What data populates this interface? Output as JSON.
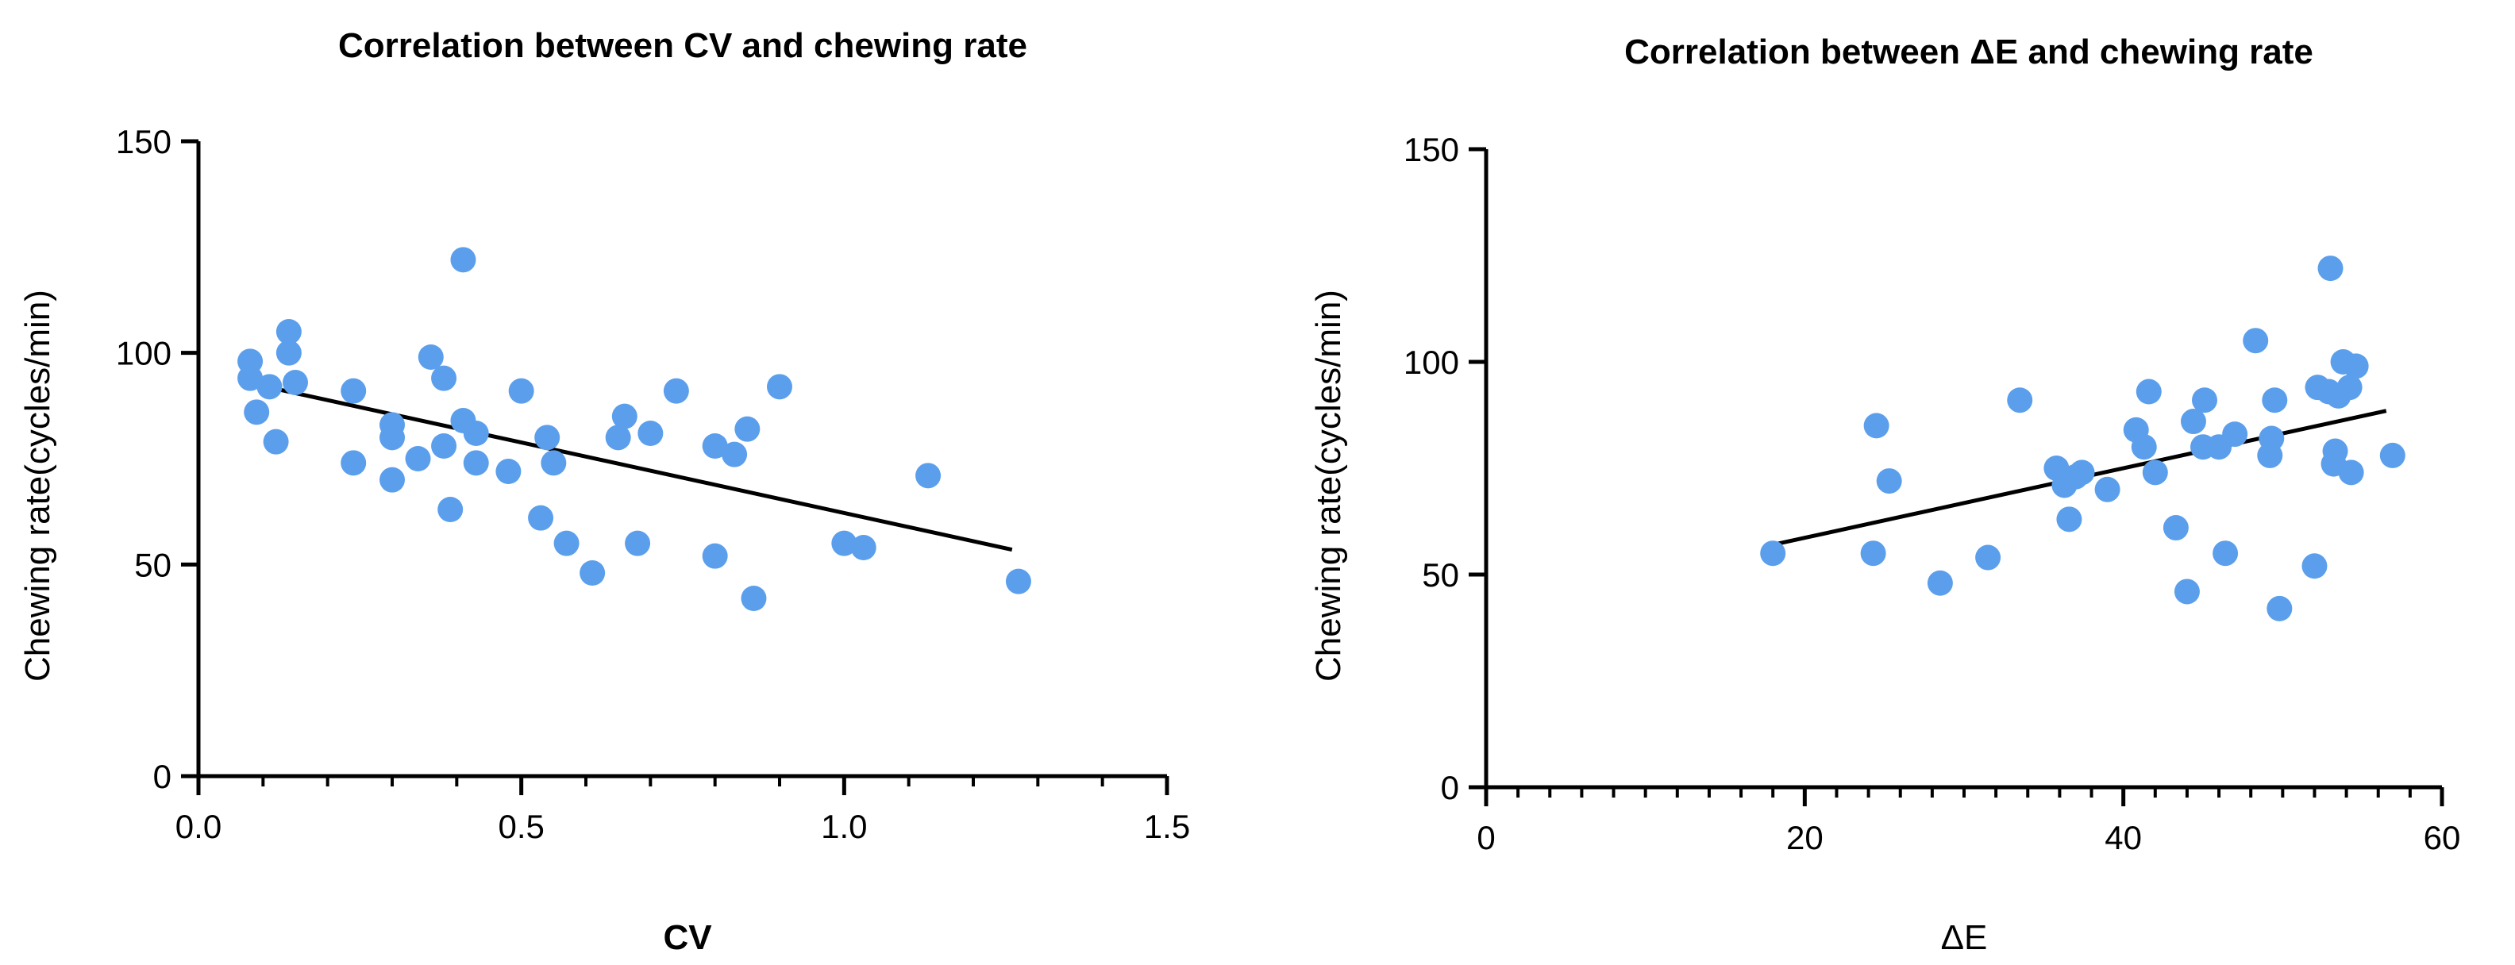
{
  "colors": {
    "point": "#5b9fec",
    "axis": "#000000",
    "fit": "#000000"
  },
  "chart_data": [
    {
      "type": "scatter",
      "title": "Correlation between CV and chewing rate",
      "xlabel": "CV",
      "ylabel": "Chewing rate(cycles/min)",
      "xlim": [
        0,
        1.5
      ],
      "ylim": [
        0,
        150
      ],
      "xticks": [
        0,
        0.5,
        1.0,
        1.5
      ],
      "xtick_labels": [
        "0.0",
        "0.5",
        "1.0",
        "1.5"
      ],
      "yticks": [
        0,
        50,
        100,
        150
      ],
      "ytick_labels": [
        "0",
        "50",
        "100",
        "150"
      ],
      "x_minor_step": 0.1,
      "y_minor_step": 0,
      "fit_line": {
        "x": [
          0.12,
          1.26
        ],
        "y": [
          91.5,
          53.5
        ]
      },
      "points": [
        {
          "x": 0.08,
          "y": 98
        },
        {
          "x": 0.08,
          "y": 94
        },
        {
          "x": 0.09,
          "y": 86
        },
        {
          "x": 0.11,
          "y": 92
        },
        {
          "x": 0.12,
          "y": 79
        },
        {
          "x": 0.14,
          "y": 105
        },
        {
          "x": 0.14,
          "y": 100
        },
        {
          "x": 0.15,
          "y": 93
        },
        {
          "x": 0.24,
          "y": 91
        },
        {
          "x": 0.24,
          "y": 74
        },
        {
          "x": 0.3,
          "y": 83
        },
        {
          "x": 0.3,
          "y": 80
        },
        {
          "x": 0.3,
          "y": 70
        },
        {
          "x": 0.34,
          "y": 75
        },
        {
          "x": 0.36,
          "y": 99
        },
        {
          "x": 0.38,
          "y": 94
        },
        {
          "x": 0.38,
          "y": 78
        },
        {
          "x": 0.39,
          "y": 63
        },
        {
          "x": 0.41,
          "y": 122
        },
        {
          "x": 0.41,
          "y": 84
        },
        {
          "x": 0.43,
          "y": 81
        },
        {
          "x": 0.43,
          "y": 74
        },
        {
          "x": 0.48,
          "y": 72
        },
        {
          "x": 0.5,
          "y": 91
        },
        {
          "x": 0.53,
          "y": 61
        },
        {
          "x": 0.54,
          "y": 80
        },
        {
          "x": 0.55,
          "y": 74
        },
        {
          "x": 0.57,
          "y": 55
        },
        {
          "x": 0.61,
          "y": 48
        },
        {
          "x": 0.65,
          "y": 80
        },
        {
          "x": 0.66,
          "y": 85
        },
        {
          "x": 0.68,
          "y": 55
        },
        {
          "x": 0.7,
          "y": 81
        },
        {
          "x": 0.74,
          "y": 91
        },
        {
          "x": 0.8,
          "y": 78
        },
        {
          "x": 0.8,
          "y": 52
        },
        {
          "x": 0.83,
          "y": 76
        },
        {
          "x": 0.85,
          "y": 82
        },
        {
          "x": 0.86,
          "y": 42
        },
        {
          "x": 0.9,
          "y": 92
        },
        {
          "x": 1.0,
          "y": 55
        },
        {
          "x": 1.03,
          "y": 54
        },
        {
          "x": 1.13,
          "y": 71
        },
        {
          "x": 1.27,
          "y": 46
        }
      ]
    },
    {
      "type": "scatter",
      "title": "Correlation between ΔE and chewing rate",
      "xlabel": "ΔE",
      "ylabel": "Chewing rate(cycles/min)",
      "xlim": [
        0,
        60
      ],
      "ylim": [
        0,
        150
      ],
      "xticks": [
        0,
        20,
        40,
        60
      ],
      "xtick_labels": [
        "0",
        "20",
        "40",
        "60"
      ],
      "yticks": [
        0,
        50,
        100,
        150
      ],
      "ytick_labels": [
        "0",
        "50",
        "100",
        "150"
      ],
      "x_minor_step": 2,
      "y_minor_step": 0,
      "fit_line": {
        "x": [
          18,
          56.5
        ],
        "y": [
          57,
          88.5
        ]
      },
      "points": [
        {
          "x": 18.0,
          "y": 55
        },
        {
          "x": 24.3,
          "y": 55
        },
        {
          "x": 24.5,
          "y": 85
        },
        {
          "x": 25.3,
          "y": 72
        },
        {
          "x": 28.5,
          "y": 48
        },
        {
          "x": 31.5,
          "y": 54
        },
        {
          "x": 33.5,
          "y": 91
        },
        {
          "x": 35.8,
          "y": 75
        },
        {
          "x": 36.3,
          "y": 71
        },
        {
          "x": 36.6,
          "y": 63
        },
        {
          "x": 37.0,
          "y": 73
        },
        {
          "x": 37.4,
          "y": 74
        },
        {
          "x": 39.0,
          "y": 70
        },
        {
          "x": 40.8,
          "y": 84
        },
        {
          "x": 41.3,
          "y": 80
        },
        {
          "x": 41.6,
          "y": 93
        },
        {
          "x": 42.0,
          "y": 74
        },
        {
          "x": 43.3,
          "y": 61
        },
        {
          "x": 44.0,
          "y": 46
        },
        {
          "x": 44.4,
          "y": 86
        },
        {
          "x": 45.0,
          "y": 80
        },
        {
          "x": 45.1,
          "y": 91
        },
        {
          "x": 46.0,
          "y": 80
        },
        {
          "x": 46.4,
          "y": 55
        },
        {
          "x": 47.0,
          "y": 83
        },
        {
          "x": 48.3,
          "y": 105
        },
        {
          "x": 49.2,
          "y": 78
        },
        {
          "x": 49.3,
          "y": 82
        },
        {
          "x": 49.5,
          "y": 91
        },
        {
          "x": 49.8,
          "y": 42
        },
        {
          "x": 52.0,
          "y": 52
        },
        {
          "x": 52.2,
          "y": 94
        },
        {
          "x": 52.9,
          "y": 93
        },
        {
          "x": 53.0,
          "y": 122
        },
        {
          "x": 53.2,
          "y": 76
        },
        {
          "x": 53.3,
          "y": 79
        },
        {
          "x": 53.5,
          "y": 92
        },
        {
          "x": 53.8,
          "y": 100
        },
        {
          "x": 54.2,
          "y": 94
        },
        {
          "x": 54.3,
          "y": 74
        },
        {
          "x": 54.6,
          "y": 99
        },
        {
          "x": 56.9,
          "y": 78
        }
      ]
    }
  ]
}
